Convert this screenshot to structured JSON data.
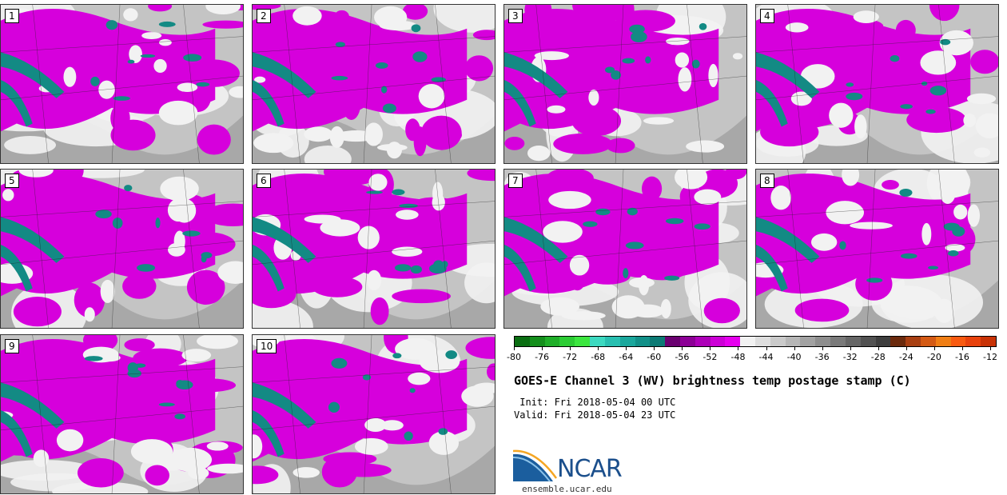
{
  "panels": [
    {
      "label": "1"
    },
    {
      "label": "2"
    },
    {
      "label": "3"
    },
    {
      "label": "4"
    },
    {
      "label": "5"
    },
    {
      "label": "6"
    },
    {
      "label": "7"
    },
    {
      "label": "8"
    },
    {
      "label": "9"
    },
    {
      "label": "10"
    }
  ],
  "colorbar": {
    "colors": [
      "#0a6e12",
      "#148f1c",
      "#1fae28",
      "#2ccc34",
      "#3ce63f",
      "#3cd9c0",
      "#28bfb0",
      "#1aa79c",
      "#119088",
      "#0b7a74",
      "#6a0070",
      "#8c0096",
      "#ad00b8",
      "#cc00d6",
      "#e600ee",
      "#f2f2f2",
      "#dedede",
      "#cacaca",
      "#b6b6b6",
      "#a2a2a2",
      "#8e8e8e",
      "#7a7a7a",
      "#666666",
      "#525252",
      "#3e3e3e",
      "#6b2a0d",
      "#a83f12",
      "#d45a14",
      "#f07e14",
      "#f85a10",
      "#e8420c",
      "#c83206"
    ],
    "tick_labels": [
      "-80",
      "-76",
      "-72",
      "-68",
      "-64",
      "-60",
      "-56",
      "-52",
      "-48",
      "-44",
      "-40",
      "-36",
      "-32",
      "-28",
      "-24",
      "-20",
      "-16",
      "-12"
    ],
    "range": [
      -80,
      -12
    ]
  },
  "title": "GOES-E Channel 3 (WV) brightness temp postage stamp (C)",
  "init": " Init: Fri 2018-05-04 00 UTC",
  "valid": "Valid: Fri 2018-05-04 23 UTC",
  "logo": {
    "text": "NCAR",
    "site": "ensemble.ucar.edu"
  },
  "colors": {
    "magenta": "#d600dc",
    "teal": "#138a84",
    "white": "#f2f2f2",
    "gray": "#bdbdbd"
  }
}
